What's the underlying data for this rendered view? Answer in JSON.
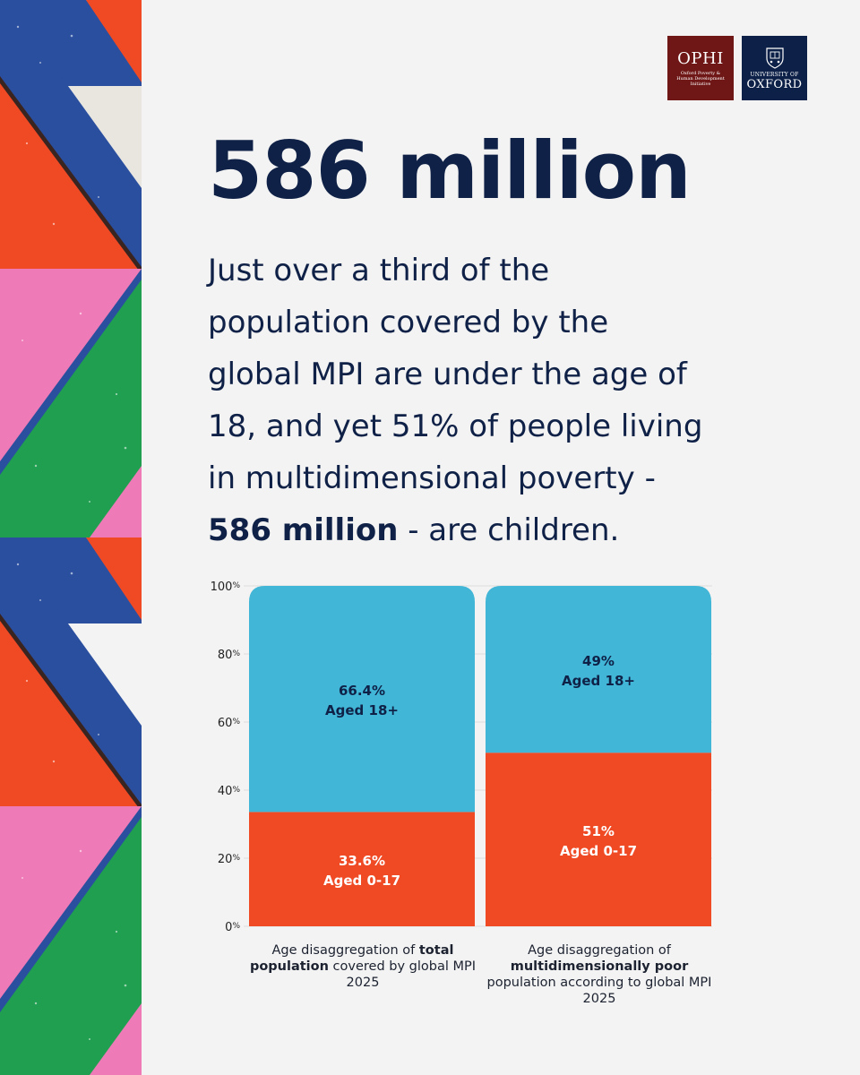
{
  "logos": {
    "ophi": {
      "name": "OPHI",
      "subtitle": "Oxford Poverty & Human Development Initiative"
    },
    "oxford": {
      "line1": "UNIVERSITY OF",
      "line2": "OXFORD"
    }
  },
  "headline": "586 million",
  "body": {
    "line1": "Just over a third of the",
    "line2": "population covered by the",
    "line3": "global MPI are under the age of",
    "line4": "18, and yet 51% of people living",
    "line5": "in multidimensional poverty -",
    "line6_bold": "586 million",
    "line6_rest": " - are children."
  },
  "colors": {
    "navy": "#0f2147",
    "adult_blue": "#41b6d6",
    "child_red": "#f04a25",
    "ophi_maroon": "#6e1716",
    "oxford_navy": "#0d2148"
  },
  "chart_data": {
    "type": "bar",
    "stacked": true,
    "categories": [
      "total population",
      "multidimensionally poor population"
    ],
    "series": [
      {
        "name": "Aged 0-17",
        "values": [
          33.6,
          51
        ],
        "labels": [
          "33.6%",
          "51%"
        ],
        "color": "#f04a25"
      },
      {
        "name": "Aged 18+",
        "values": [
          66.4,
          49
        ],
        "labels": [
          "66.4%",
          "49%"
        ],
        "color": "#41b6d6"
      }
    ],
    "segment_names": [
      "Aged 0-17",
      "Aged 18+"
    ],
    "yticks": [
      "0%",
      "20%",
      "40%",
      "60%",
      "80%",
      "100%"
    ],
    "ylim": [
      0,
      100
    ],
    "grid": true,
    "captions": [
      {
        "pre": "Age disaggregation of ",
        "bold": "total population",
        "post": " covered by global MPI 2025"
      },
      {
        "pre": "Age disaggregation of ",
        "bold": "multidimensionally poor",
        "post": " population according to global MPI 2025"
      }
    ]
  }
}
